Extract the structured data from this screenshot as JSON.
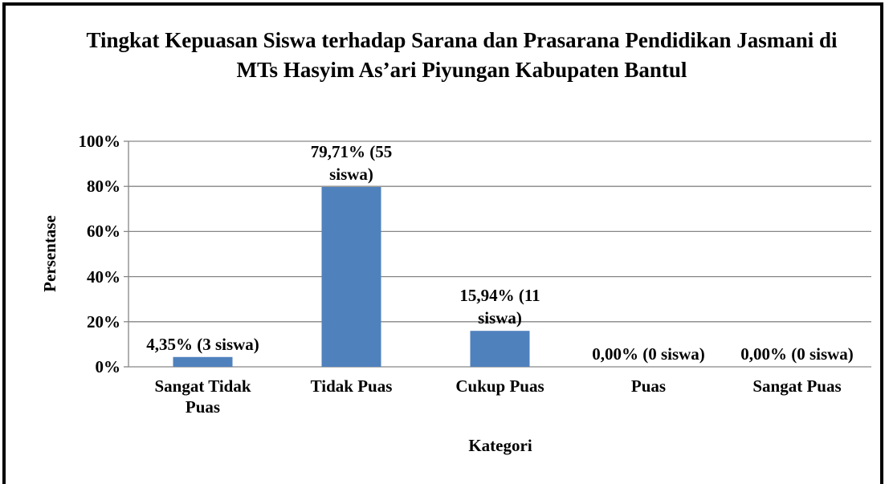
{
  "chart_data": {
    "type": "bar",
    "title": "Tingkat Kepuasan Siswa terhadap Sarana dan Prasarana Pendidikan Jasmani di MTs Hasyim As’ari Piyungan Kabupaten Bantul",
    "x_label": "Kategori",
    "y_label": "Persentase",
    "categories": [
      "Sangat Tidak Puas",
      "Tidak Puas",
      "Cukup Puas",
      "Puas",
      "Sangat Puas"
    ],
    "values": [
      4.35,
      79.71,
      15.94,
      0,
      0
    ],
    "value_labels": [
      "4,35% (3 siswa)",
      "79,71% (55 siswa)",
      "15,94% (11 siswa)",
      "0,00% (0 siswa)",
      "0,00% (0 siswa)"
    ],
    "color": "#4f81bd",
    "ylim": [
      0,
      100
    ],
    "yticks": [
      {
        "value": 0,
        "label": "0%"
      },
      {
        "value": 20,
        "label": "20%"
      },
      {
        "value": 40,
        "label": "40%"
      },
      {
        "value": 60,
        "label": "60%"
      },
      {
        "value": 80,
        "label": "80%"
      },
      {
        "value": 100,
        "label": "100%"
      }
    ],
    "grid": true
  }
}
